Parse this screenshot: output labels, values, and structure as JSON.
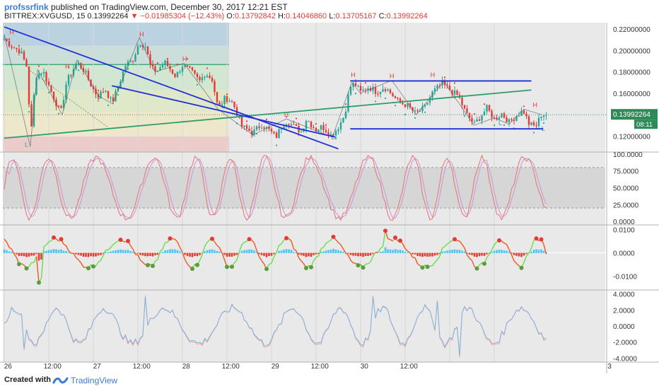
{
  "header": {
    "author": "profssrfink",
    "published_text": "published on TradingView.com, December 30, 2017 12:21 EST",
    "symbol": "BITTREX:XVGUSD, 15",
    "last": "0.13992264",
    "change": "−0.01985304 (−12.43%)",
    "open_label": "O:",
    "open": "0.13792842",
    "high_label": "H:",
    "high": "0.14046860",
    "low_label": "L:",
    "low": "0.13705167",
    "close_label": "C:",
    "close": "0.13992264"
  },
  "footer": {
    "created_with": "Created with",
    "brand": "TradingView"
  },
  "colors": {
    "bull": "#26a69a",
    "bear": "#e53935",
    "trend_blue": "#1f2fd6",
    "trend_green": "#2e9e6a",
    "stoch_k": "#e57373",
    "stoch_d": "#ce93d8",
    "osc_line_up": "#66e04a",
    "osc_line_down": "#f0581a",
    "last_price_bg": "#2e8b57"
  },
  "chart_data": [
    {
      "type": "candlestick",
      "price_axis_ticks": [
        "0.22000000",
        "0.20000000",
        "0.18000000",
        "0.16000000",
        "0.14000000",
        "0.12000000"
      ],
      "y_range": [
        0.105,
        0.226
      ],
      "last_price_label": "0.13992264",
      "countdown": "08:11",
      "time_axis_labels": [
        "26",
        "12:00",
        "27",
        "12:00",
        "28",
        "12:00",
        "29",
        "12:00",
        "30",
        "12:00",
        "3"
      ],
      "close_path": [
        [
          0,
          0.211
        ],
        [
          0.8,
          0.205
        ],
        [
          2.2,
          0.199
        ],
        [
          3.2,
          0.182
        ],
        [
          3.5,
          0.112
        ],
        [
          4.2,
          0.176
        ],
        [
          5.2,
          0.181
        ],
        [
          6.3,
          0.162
        ],
        [
          7.6,
          0.141
        ],
        [
          8.4,
          0.171
        ],
        [
          9.8,
          0.189
        ],
        [
          10.8,
          0.181
        ],
        [
          11.8,
          0.166
        ],
        [
          12.6,
          0.157
        ],
        [
          13.6,
          0.164
        ],
        [
          14.5,
          0.151
        ],
        [
          15.3,
          0.165
        ],
        [
          16.3,
          0.186
        ],
        [
          17.3,
          0.191
        ],
        [
          18.2,
          0.208
        ],
        [
          19.0,
          0.204
        ],
        [
          19.8,
          0.183
        ],
        [
          20.6,
          0.181
        ],
        [
          21.6,
          0.189
        ],
        [
          23.1,
          0.176
        ],
        [
          24.0,
          0.186
        ],
        [
          25.1,
          0.181
        ],
        [
          26.3,
          0.171
        ],
        [
          27.1,
          0.179
        ],
        [
          28.0,
          0.173
        ],
        [
          28.8,
          0.146
        ],
        [
          29.8,
          0.156
        ],
        [
          30.8,
          0.151
        ],
        [
          32.0,
          0.129
        ],
        [
          33.5,
          0.123
        ],
        [
          34.6,
          0.131
        ],
        [
          35.6,
          0.126
        ],
        [
          36.6,
          0.119
        ],
        [
          37.5,
          0.131
        ],
        [
          38.1,
          0.134
        ],
        [
          39.0,
          0.129
        ],
        [
          40.0,
          0.124
        ],
        [
          40.7,
          0.136
        ],
        [
          41.3,
          0.131
        ],
        [
          42.0,
          0.126
        ],
        [
          42.8,
          0.129
        ],
        [
          44.0,
          0.121
        ],
        [
          44.8,
          0.126
        ],
        [
          45.8,
          0.139
        ],
        [
          46.6,
          0.166
        ],
        [
          47.2,
          0.169
        ],
        [
          48.0,
          0.161
        ],
        [
          49.1,
          0.166
        ],
        [
          50.2,
          0.161
        ],
        [
          51.2,
          0.166
        ],
        [
          52.2,
          0.159
        ],
        [
          53.2,
          0.151
        ],
        [
          54.2,
          0.149
        ],
        [
          55.4,
          0.141
        ],
        [
          56.6,
          0.146
        ],
        [
          57.7,
          0.161
        ],
        [
          59.0,
          0.169
        ],
        [
          60.4,
          0.161
        ],
        [
          61.2,
          0.157
        ],
        [
          62.2,
          0.141
        ],
        [
          63.3,
          0.131
        ],
        [
          64.0,
          0.137
        ],
        [
          65.0,
          0.146
        ],
        [
          66.0,
          0.136
        ],
        [
          67.0,
          0.141
        ],
        [
          68.0,
          0.133
        ],
        [
          69.0,
          0.139
        ],
        [
          69.9,
          0.144
        ],
        [
          70.7,
          0.131
        ],
        [
          71.6,
          0.129
        ],
        [
          72.4,
          0.141
        ],
        [
          73.0,
          0.139
        ]
      ],
      "drawings": {
        "descending_channel_upper": [
          [
            0,
            0.222
          ],
          [
            45.0,
            0.108
          ]
        ],
        "descending_channel_lower": [
          [
            14.5,
            0.167
          ],
          [
            44.6,
            0.119
          ]
        ],
        "horizontal_resistance": [
          [
            46.6,
            0.1715
          ],
          [
            71.0,
            0.1715
          ]
        ],
        "horizontal_support": [
          [
            46.6,
            0.1267
          ],
          [
            72.6,
            0.1267
          ]
        ],
        "ascending_trend": [
          [
            0,
            0.118
          ],
          [
            71.0,
            0.163
          ]
        ]
      },
      "price_markers": [
        "H",
        "L"
      ]
    },
    {
      "type": "line",
      "name_hint": "stochastic",
      "y_axis_ticks": [
        "100.0000",
        "75.0000",
        "50.0000",
        "25.0000",
        "0.0000"
      ],
      "y_range": [
        -5,
        103
      ],
      "overbought": 80,
      "oversold": 20
    },
    {
      "type": "line",
      "name_hint": "momentum_oscillator",
      "y_axis_ticks": [
        "0.0100",
        "0.0000",
        "-0.0100"
      ],
      "y_range": [
        -0.016,
        0.012
      ]
    },
    {
      "type": "line",
      "name_hint": "oscillator",
      "y_axis_ticks": [
        "4.0000",
        "2.0000",
        "0.0000",
        "-2.0000",
        "-4.0000"
      ],
      "y_range": [
        -4.5,
        4.5
      ]
    }
  ]
}
